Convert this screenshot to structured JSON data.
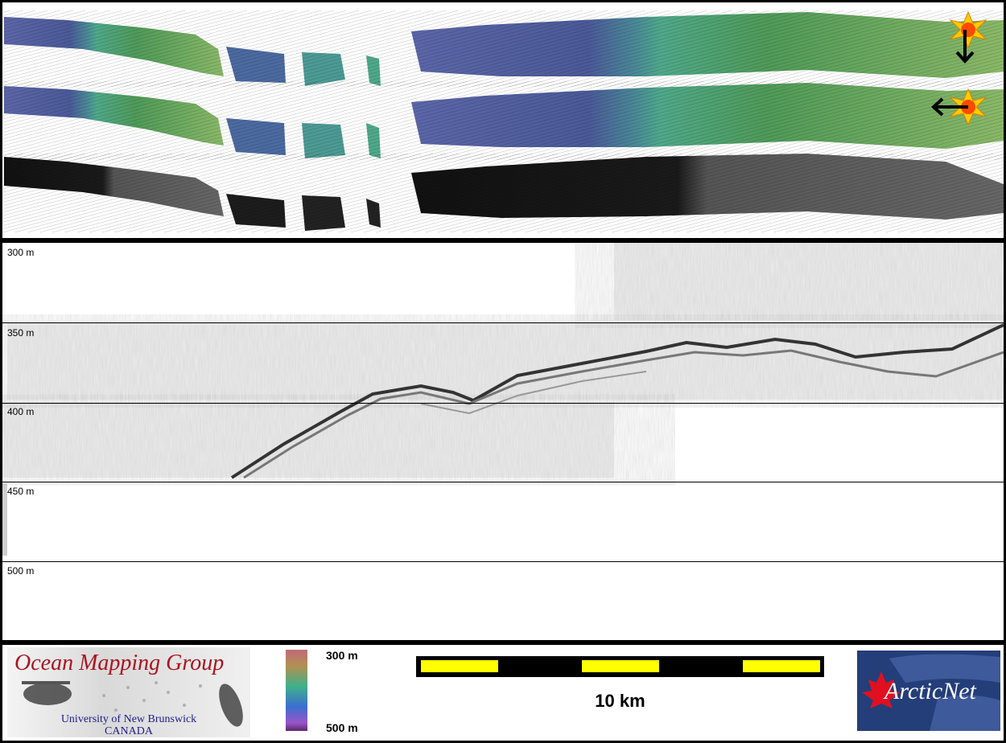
{
  "profile": {
    "depth_labels": [
      "300 m",
      "350 m",
      "400 m",
      "450 m",
      "500 m"
    ]
  },
  "legend": {
    "colorbar_top": "300 m",
    "colorbar_bottom": "500 m",
    "scale_label": "10 km"
  },
  "logos": {
    "omg_title": "Ocean Mapping Group",
    "omg_university": "University of New Brunswick",
    "omg_country": "CANADA",
    "arcticnet_text": "ArcticNet"
  },
  "icons": {
    "sun_light": "sun-icon",
    "arrow_down": "arrow-down-icon",
    "arrow_left": "arrow-left-icon"
  },
  "colors": {
    "bathymetry_blue": "#5a6aa8",
    "bathymetry_teal": "#4a9a88",
    "bathymetry_green": "#4f9a52",
    "backscatter": "#2a2a2a",
    "scale_yellow": "#ffff00",
    "omg_red": "#a8141e"
  }
}
